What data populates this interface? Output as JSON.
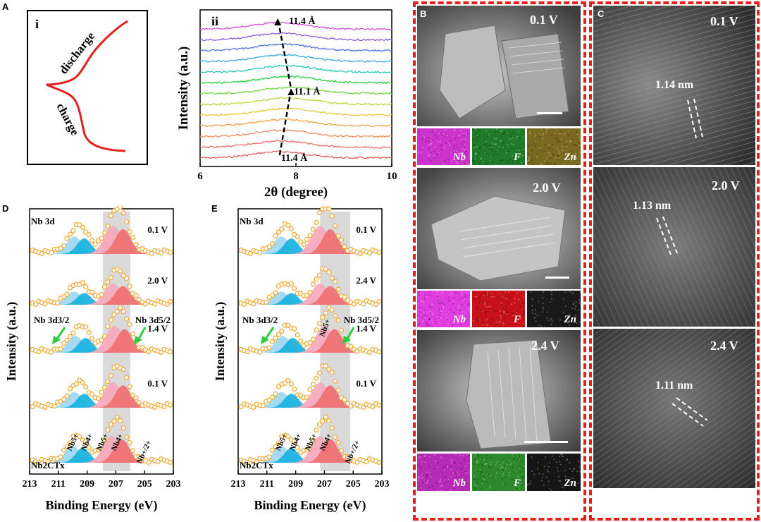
{
  "panels": {
    "a": {
      "label": "A",
      "sub_i": {
        "label": "i",
        "discharge": "discharge",
        "charge": "charge"
      },
      "sub_ii": {
        "label": "ii",
        "ylabel": "Intensity (a.u.)",
        "xlabel": "2θ (degree)",
        "annotations": [
          "11.4 Å",
          "11.1 Å",
          "11.4 Å"
        ]
      }
    },
    "b": {
      "label": "B",
      "rows": [
        {
          "voltage": "0.1 V",
          "eds": [
            {
              "element": "Nb",
              "color": "#cc33cc"
            },
            {
              "element": "F",
              "color": "#1f7a2a"
            },
            {
              "element": "Zn",
              "color": "#7a6a1f"
            }
          ]
        },
        {
          "voltage": "2.0 V",
          "eds": [
            {
              "element": "Nb",
              "color": "#e03de0"
            },
            {
              "element": "F",
              "color": "#c8121a"
            },
            {
              "element": "Zn",
              "color": "#1a1a1a"
            }
          ]
        },
        {
          "voltage": "2.4 V",
          "eds": [
            {
              "element": "Nb",
              "color": "#b62ab6"
            },
            {
              "element": "F",
              "color": "#2c8a2c"
            },
            {
              "element": "Zn",
              "color": "#161616"
            }
          ]
        }
      ]
    },
    "c": {
      "label": "C",
      "rows": [
        {
          "voltage": "0.1 V",
          "spacing": "1.14 nm"
        },
        {
          "voltage": "2.0 V",
          "spacing": "1.13 nm"
        },
        {
          "voltage": "2.4 V",
          "spacing": "1.11 nm"
        }
      ]
    },
    "d": {
      "label": "D",
      "title": "Nb 3d",
      "ylabel": "Intensity (a.u.)",
      "xlabel": "Binding Energy (eV)",
      "voltages": [
        "0.1 V",
        "2.0 V",
        "1.4 V",
        "0.1 V"
      ],
      "peak_labels": [
        "Nb 3d3/2",
        "Nb 3d5/2"
      ],
      "species": [
        "Nb5+",
        "Nb4+",
        "Nb5+",
        "Nb4+",
        "Nb+/2+"
      ],
      "bottom_label": "Nb2CTx"
    },
    "e": {
      "label": "E",
      "title": "Nb 3d",
      "ylabel": "Intensity (a.u.)",
      "xlabel": "Binding Energy (eV)",
      "voltages": [
        "0.1 V",
        "2.4 V",
        "1.4 V",
        "0.1 V"
      ],
      "peak_labels": [
        "Nb 3d3/2",
        "Nb 3d5/2"
      ],
      "inline_species": "Nb5+",
      "species": [
        "Nb5+",
        "Nb4+",
        "Nb5+",
        "Nb4+",
        "Nb+/2+"
      ],
      "bottom_label": "Nb2CTx"
    }
  },
  "chart_data": [
    {
      "type": "line",
      "panel": "A-ii",
      "xlabel": "2θ (degree)",
      "ylabel": "Intensity (a.u.)",
      "xlim": [
        6,
        10
      ],
      "x_ticks": [
        6,
        8,
        10
      ],
      "series_count": 13,
      "series_colors": [
        "#e35c5c",
        "#f26a6a",
        "#f08a5a",
        "#f0a040",
        "#e8c83c",
        "#b8d838",
        "#6cd63c",
        "#22d03c",
        "#22c8b8",
        "#38a8e8",
        "#4c74e0",
        "#8a5ae0",
        "#d24ee0"
      ],
      "peak_positions": [
        7.66,
        7.69,
        7.72,
        7.76,
        7.8,
        7.84,
        7.88,
        7.85,
        7.8,
        7.76,
        7.72,
        7.68,
        7.64
      ],
      "annotations": [
        {
          "text": "11.4 Å",
          "x": 7.66,
          "at": "bottom"
        },
        {
          "text": "11.1 Å",
          "x": 7.9,
          "at": "middle"
        },
        {
          "text": "11.4 Å",
          "x": 7.62,
          "at": "top"
        }
      ]
    },
    {
      "type": "line",
      "panel": "D",
      "xlabel": "Binding Energy (eV)",
      "ylabel": "Intensity (a.u.)",
      "xlim": [
        213,
        203
      ],
      "x_ticks": [
        213,
        211,
        209,
        207,
        205,
        203
      ],
      "highlight_range": [
        207.9,
        206.0
      ],
      "spectra": [
        {
          "label": "0.1 V",
          "peaks_eV": [
            209.9,
            209.2,
            207.2,
            206.5
          ]
        },
        {
          "label": "2.0 V",
          "peaks_eV": [
            209.9,
            209.2,
            207.2,
            206.5
          ]
        },
        {
          "label": "1.4 V",
          "peaks_eV": [
            209.8,
            209.1,
            207.1,
            206.4
          ]
        },
        {
          "label": "0.1 V",
          "peaks_eV": [
            209.9,
            209.2,
            207.2,
            206.5
          ]
        },
        {
          "label": "Nb2CTx",
          "peaks_eV": [
            210.0,
            209.3,
            207.3,
            206.6
          ]
        }
      ]
    },
    {
      "type": "line",
      "panel": "E",
      "xlabel": "Binding Energy (eV)",
      "ylabel": "Intensity (a.u.)",
      "xlim": [
        213,
        203
      ],
      "x_ticks": [
        213,
        211,
        209,
        207,
        205,
        203
      ],
      "highlight_range": [
        207.3,
        205.2
      ],
      "spectra": [
        {
          "label": "0.1 V",
          "peaks_eV": [
            210.0,
            209.3,
            207.3,
            206.6
          ]
        },
        {
          "label": "2.4 V",
          "peaks_eV": [
            210.0,
            209.3,
            207.3,
            206.6
          ]
        },
        {
          "label": "1.4 V",
          "peaks_eV": [
            209.9,
            209.2,
            207.0,
            206.3
          ]
        },
        {
          "label": "0.1 V",
          "peaks_eV": [
            210.0,
            209.3,
            207.3,
            206.6
          ]
        },
        {
          "label": "Nb2CTx",
          "peaks_eV": [
            210.0,
            209.3,
            207.3,
            206.6
          ]
        }
      ]
    }
  ]
}
